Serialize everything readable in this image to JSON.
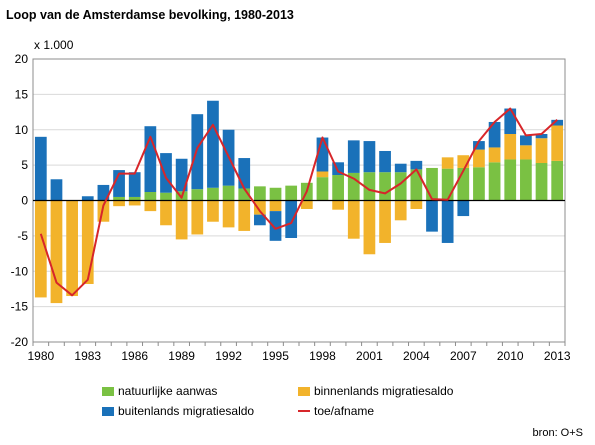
{
  "title": "Loop van de Amsterdamse bevolking, 1980-2013",
  "unit_label": "x 1.000",
  "source": "bron: O+S",
  "colors": {
    "natural": "#7ac143",
    "internal": "#f2b32b",
    "foreign": "#1a71b9",
    "total": "#d7262a",
    "grid": "#d9d9d9"
  },
  "chart_data": {
    "type": "bar",
    "stacked": true,
    "categories": [
      "1980",
      "1981",
      "1982",
      "1983",
      "1984",
      "1985",
      "1986",
      "1987",
      "1988",
      "1989",
      "1990",
      "1991",
      "1992",
      "1993",
      "1994",
      "1995",
      "1996",
      "1997",
      "1998",
      "1999",
      "2000",
      "2001",
      "2002",
      "2003",
      "2004",
      "2005",
      "2006",
      "2007",
      "2008",
      "2009",
      "2010",
      "2011",
      "2012",
      "2013"
    ],
    "x_tick_labels": [
      "1980",
      "1983",
      "1986",
      "1989",
      "1992",
      "1995",
      "1998",
      "2001",
      "2004",
      "2007",
      "2010",
      "2013"
    ],
    "ylim": [
      -20,
      20
    ],
    "y_ticks": [
      -20,
      -15,
      -10,
      -5,
      0,
      5,
      10,
      15,
      20
    ],
    "grid": true,
    "legend_position": "bottom",
    "series": [
      {
        "name": "natuurlijke aanwas",
        "type": "bar",
        "values": [
          0,
          0,
          0,
          0,
          0,
          0.5,
          0.5,
          1.2,
          1.1,
          1.3,
          1.6,
          1.8,
          2.1,
          1.7,
          2.0,
          1.8,
          2.1,
          2.5,
          3.3,
          3.6,
          3.9,
          4.0,
          4.0,
          4.0,
          4.4,
          4.6,
          4.5,
          4.6,
          4.7,
          5.4,
          5.8,
          5.8,
          5.3,
          5.6
        ]
      },
      {
        "name": "binnenlands migratiesaldo",
        "type": "bar",
        "values": [
          -13.7,
          -14.5,
          -13.5,
          -11.8,
          -3.0,
          -0.8,
          -0.7,
          -1.5,
          -3.5,
          -5.5,
          -4.8,
          -3.0,
          -3.8,
          -4.3,
          -2.0,
          -1.5,
          0,
          -1.2,
          0.8,
          -1.3,
          -5.4,
          -7.6,
          -6.0,
          -2.8,
          -1.2,
          0,
          1.6,
          1.8,
          2.5,
          2.1,
          3.6,
          2.0,
          3.5,
          5.0
        ]
      },
      {
        "name": "buitenlands migratiesaldo",
        "type": "bar",
        "values": [
          9.0,
          3.0,
          0,
          0.6,
          2.2,
          3.8,
          3.5,
          9.3,
          5.6,
          4.6,
          10.6,
          12.3,
          7.9,
          4.3,
          -1.5,
          -4.2,
          -5.3,
          0,
          4.8,
          1.8,
          4.6,
          4.4,
          3.0,
          1.2,
          1.2,
          -4.4,
          -6.0,
          -2.2,
          1.2,
          3.6,
          3.6,
          1.4,
          0.6,
          0.8
        ]
      },
      {
        "name": "toe/afname",
        "type": "line",
        "values": [
          -4.7,
          -11.6,
          -13.4,
          -11.2,
          -0.7,
          3.8,
          3.8,
          9.0,
          3.2,
          0.4,
          7.4,
          10.7,
          6.2,
          1.7,
          -1.5,
          -4.0,
          -3.2,
          1.3,
          8.9,
          4.1,
          3.1,
          1.5,
          1.0,
          2.4,
          4.4,
          0.2,
          0.1,
          4.2,
          8.4,
          11.1,
          13.0,
          9.2,
          9.4,
          11.4
        ]
      }
    ]
  }
}
